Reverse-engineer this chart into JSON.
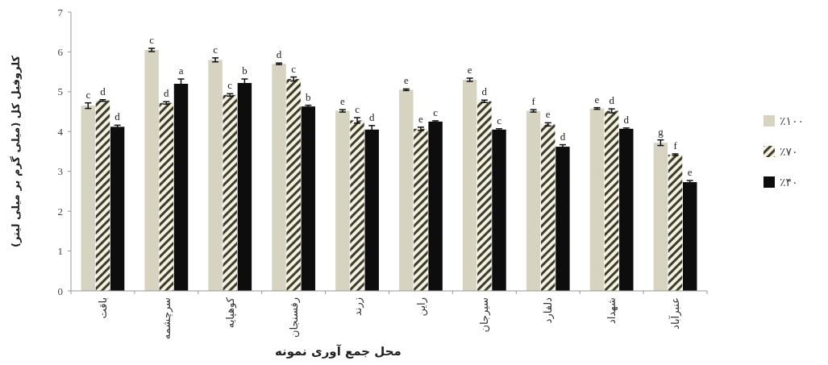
{
  "chart_data": {
    "type": "bar",
    "xlabel": "محل جمع آوری نمونه",
    "ylabel": "کلروفیل کل (میلی گرم بر میلی لیتر)",
    "categories": [
      "باقت",
      "سرچشمه",
      "کوهپایه",
      "رفسنجان",
      "زرند",
      "راین",
      "سیرجان",
      "دلفارد",
      "شهداد",
      "عنبرآباد"
    ],
    "series": [
      {
        "name": "٪۱۰۰",
        "color": "#d6d3c0",
        "values": [
          4.65,
          6.05,
          5.8,
          5.7,
          4.52,
          5.05,
          5.3,
          4.52,
          4.58,
          3.72
        ],
        "errors": [
          0.07,
          0.04,
          0.05,
          0.02,
          0.03,
          0.02,
          0.04,
          0.03,
          0.02,
          0.07
        ],
        "value_labels": [
          "c",
          "c",
          "c",
          "d",
          "e",
          "e",
          "e",
          "f",
          "e",
          "g"
        ]
      },
      {
        "name": "٪۷۰",
        "color": "#3c3c32",
        "values": [
          4.78,
          4.72,
          4.92,
          5.32,
          4.28,
          4.07,
          4.76,
          4.18,
          4.52,
          3.42
        ],
        "errors": [
          0.02,
          0.03,
          0.03,
          0.05,
          0.07,
          0.04,
          0.03,
          0.04,
          0.05,
          0.02
        ],
        "value_labels": [
          "d",
          "d",
          "c",
          "c",
          "c",
          "e",
          "d",
          "e",
          "d",
          "f"
        ]
      },
      {
        "name": "٪۴۰",
        "color": "#0d0d0d",
        "values": [
          4.12,
          5.2,
          5.22,
          4.63,
          4.05,
          4.25,
          4.05,
          3.62,
          4.07,
          2.73
        ],
        "errors": [
          0.04,
          0.12,
          0.1,
          0.03,
          0.1,
          0.02,
          0.02,
          0.05,
          0.02,
          0.04
        ],
        "value_labels": [
          "d",
          "a",
          "b",
          "b",
          "d",
          "c",
          "c",
          "d",
          "d",
          "e"
        ]
      }
    ],
    "ylim": [
      0,
      7
    ],
    "yticks": [
      0,
      1,
      2,
      3,
      4,
      5,
      6,
      7
    ],
    "grid": false,
    "legend": "right"
  }
}
